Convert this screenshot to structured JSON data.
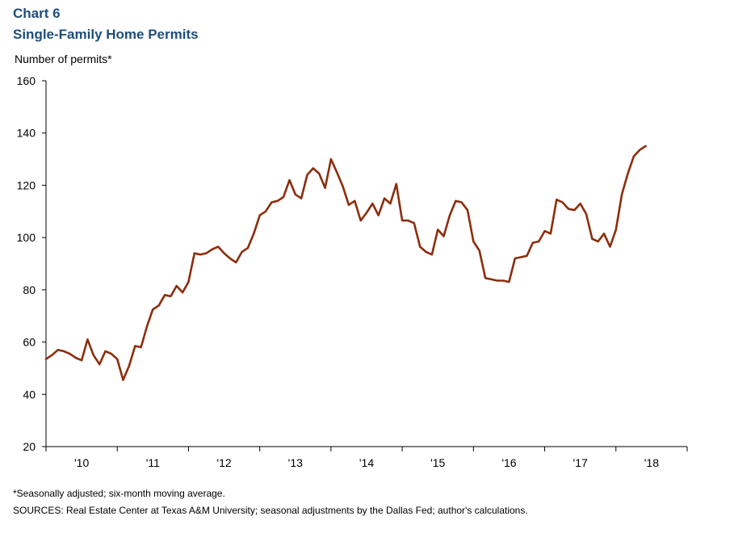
{
  "header": {
    "chart_number": "Chart 6",
    "title": "Single-Family Home Permits"
  },
  "footer": {
    "note": "*Seasonally adjusted; six-month moving average.",
    "sources": "SOURCES: Real Estate Center at Texas A&M University; seasonal adjustments by the Dallas Fed; author's calculations."
  },
  "colors": {
    "title": "#1f4e79",
    "line": "#8b2e0e",
    "axis": "#000000"
  },
  "chart_data": {
    "type": "line",
    "title": "Single-Family Home Permits",
    "ylabel": "Number of permits*",
    "xlabel": "",
    "ylim": [
      20,
      160
    ],
    "yticks": [
      20,
      40,
      60,
      80,
      100,
      120,
      140,
      160
    ],
    "xlim": [
      2009.5,
      2018.5
    ],
    "x_tick_labels": [
      "'10",
      "'11",
      "'12",
      "'13",
      "'14",
      "'15",
      "'16",
      "'17",
      "'18"
    ],
    "grid": false,
    "legend": "none",
    "series": [
      {
        "name": "Single-family home permits",
        "color": "#8b2e0e",
        "x": [
          2009.5,
          2009.583,
          2009.667,
          2009.75,
          2009.833,
          2009.917,
          2010.0,
          2010.083,
          2010.167,
          2010.25,
          2010.333,
          2010.417,
          2010.5,
          2010.583,
          2010.667,
          2010.75,
          2010.833,
          2010.917,
          2011.0,
          2011.083,
          2011.167,
          2011.25,
          2011.333,
          2011.417,
          2011.5,
          2011.583,
          2011.667,
          2011.75,
          2011.833,
          2011.917,
          2012.0,
          2012.083,
          2012.167,
          2012.25,
          2012.333,
          2012.417,
          2012.5,
          2012.583,
          2012.667,
          2012.75,
          2012.833,
          2012.917,
          2013.0,
          2013.083,
          2013.167,
          2013.25,
          2013.333,
          2013.417,
          2013.5,
          2013.583,
          2013.667,
          2013.75,
          2013.833,
          2013.917,
          2014.0,
          2014.083,
          2014.167,
          2014.25,
          2014.333,
          2014.417,
          2014.5,
          2014.583,
          2014.667,
          2014.75,
          2014.833,
          2014.917,
          2015.0,
          2015.083,
          2015.167,
          2015.25,
          2015.333,
          2015.417,
          2015.5,
          2015.583,
          2015.667,
          2015.75,
          2015.833,
          2015.917,
          2016.0,
          2016.083,
          2016.167,
          2016.25,
          2016.333,
          2016.417,
          2016.5,
          2016.583,
          2016.667,
          2016.75,
          2016.833,
          2016.917,
          2017.0,
          2017.083,
          2017.167,
          2017.25,
          2017.333,
          2017.417,
          2017.5,
          2017.583,
          2017.667,
          2017.75,
          2017.833,
          2017.917
        ],
        "values": [
          53.5,
          55,
          57,
          56.5,
          55.5,
          54,
          53,
          61,
          55,
          51.5,
          56.5,
          55.5,
          53.5,
          45.5,
          51,
          58.5,
          58,
          66,
          72.5,
          74,
          78,
          77.5,
          81.5,
          79,
          83,
          94,
          93.5,
          94,
          95.5,
          96.5,
          94,
          92,
          90.5,
          94.5,
          96,
          101.5,
          108.5,
          110,
          113.5,
          114,
          115.5,
          122,
          116.5,
          115,
          124,
          126.5,
          124.5,
          119,
          130,
          125,
          119.5,
          112.5,
          114,
          106.5,
          109.5,
          113,
          108.5,
          115,
          113,
          120.5,
          106.5,
          106.5,
          105.5,
          96.5,
          94.5,
          93.5,
          103,
          100.5,
          108.5,
          114,
          113.5,
          110.5,
          98.5,
          95,
          84.5,
          84,
          83.5,
          83.5,
          83,
          92,
          92.5,
          93,
          98,
          98.5,
          102.5,
          101.5,
          114.5,
          113.5,
          111,
          110.5,
          113,
          109,
          99.5,
          98.5,
          101.5,
          96.5,
          103,
          116.5,
          124.5,
          131,
          133.5,
          135
        ]
      }
    ]
  }
}
